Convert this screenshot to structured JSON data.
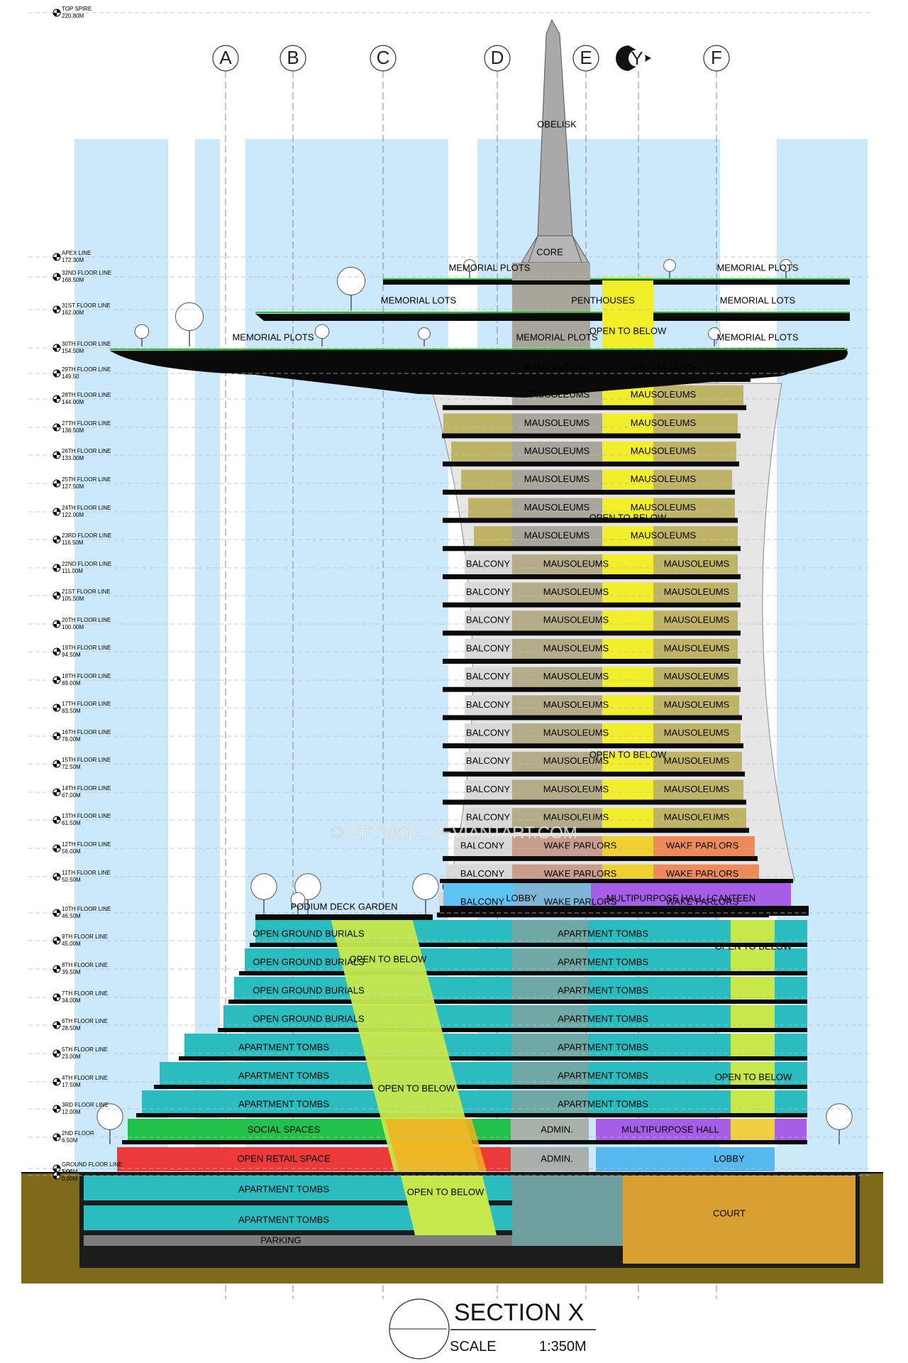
{
  "title_block": {
    "title": "SECTION X",
    "scale_label": "SCALE",
    "scale_value": "1:350M"
  },
  "watermark": "© CFTM512.DEVIANTART.COM",
  "grid_axes": [
    "A",
    "B",
    "C",
    "D",
    "E",
    "F"
  ],
  "section_marker": "Y",
  "levels": [
    {
      "name": "TOP SPIRE",
      "elev": "220.80M"
    },
    {
      "name": "APEX LINE",
      "elev": "172.30M"
    },
    {
      "name": "32ND FLOOR LINE",
      "elev": "168.50M"
    },
    {
      "name": "31ST FLOOR LINE",
      "elev": "162.00M"
    },
    {
      "name": "30TH FLOOR LINE",
      "elev": "154.50M"
    },
    {
      "name": "29TH FLOOR LINE",
      "elev": "149.50"
    },
    {
      "name": "28TH FLOOR LINE",
      "elev": "144.00M"
    },
    {
      "name": "27TH FLOOR LINE",
      "elev": "138.50M"
    },
    {
      "name": "26TH FLOOR LINE",
      "elev": "133.00M"
    },
    {
      "name": "25TH FLOOR LINE",
      "elev": "127.50M"
    },
    {
      "name": "24TH FLOOR LINE",
      "elev": "122.00M"
    },
    {
      "name": "23RD FLOOR LINE",
      "elev": "116.50M"
    },
    {
      "name": "22ND FLOOR LINE",
      "elev": "111.00M"
    },
    {
      "name": "21ST FLOOR LINE",
      "elev": "105.50M"
    },
    {
      "name": "20TH FLOOR LINE",
      "elev": "100.00M"
    },
    {
      "name": "19TH FLOOR LINE",
      "elev": "94.50M"
    },
    {
      "name": "18TH FLOOR LINE",
      "elev": "89.00M"
    },
    {
      "name": "17TH FLOOR LINE",
      "elev": "83.50M"
    },
    {
      "name": "16TH FLOOR LINE",
      "elev": "78.00M"
    },
    {
      "name": "15TH FLOOR LINE",
      "elev": "72.50M"
    },
    {
      "name": "14TH FLOOR LINE",
      "elev": "67.00M"
    },
    {
      "name": "13TH FLOOR LINE",
      "elev": "61.50M"
    },
    {
      "name": "12TH FLOOR LINE",
      "elev": "56.00M"
    },
    {
      "name": "11TH FLOOR LINE",
      "elev": "50.50M"
    },
    {
      "name": "10TH FLOOR LINE",
      "elev": "46.50M"
    },
    {
      "name": "9TH FLOOR LINE",
      "elev": "45.00M"
    },
    {
      "name": "8TH FLOOR LINE",
      "elev": "39.50M"
    },
    {
      "name": "7TH FLOOR LINE",
      "elev": "34.00M"
    },
    {
      "name": "6TH FLOOR LINE",
      "elev": "28.50M"
    },
    {
      "name": "5TH FLOOR LINE",
      "elev": "23.00M"
    },
    {
      "name": "4TH FLOOR LINE",
      "elev": "17.50M"
    },
    {
      "name": "3RD FLOOR LINE",
      "elev": "12.00M"
    },
    {
      "name": "2ND FLOOR",
      "elev": "6.50M"
    },
    {
      "name": "GROUND FLOOR LINE",
      "elev": "1.00M"
    },
    {
      "name": "NGL",
      "elev": "0.00M"
    }
  ],
  "colors": {
    "sky": "#cce9fb",
    "mausoleum": "#bfb465",
    "core": "#a8a59a",
    "void": "#f2ee2a",
    "wake": "#ee8a5a",
    "lobby": "#5ec3f5",
    "hall": "#a65ee6",
    "teal": "#2bbcc0",
    "social": "#22c14a",
    "retail": "#ec3a3a",
    "court": "#d8a030",
    "parking": "#7d7d7d",
    "soil": "#7d6b1b",
    "slab": "#0a0a0a"
  },
  "labels": {
    "obelisk": "OBELISK",
    "core": "CORE",
    "memorial_plots": "MEMORIAL PLOTS",
    "memorial_lots": "MEMORIAL LOTS",
    "penthouses": "PENTHOUSES",
    "open_to_below": "OPEN TO BELOW",
    "mausoleums": "MAUSOLEUMS",
    "balcony": "BALCONY",
    "wake_parlors": "WAKE PARLORS",
    "lobby": "LOBBY",
    "multipurpose_canteen": "MULTIPURPOSE HALL / CANTEEN",
    "podium_garden": "PODIUM DECK GARDEN",
    "open_ground_burials": "OPEN GROUND BURIALS",
    "apartment_tombs": "APARTMENT  TOMBS",
    "social_spaces": "SOCIAL SPACES",
    "admin": "ADMIN.",
    "multipurpose_hall": "MULTIPURPOSE HALL",
    "open_retail": "OPEN RETAIL SPACE",
    "court": "COURT",
    "parking": "PARKING"
  }
}
